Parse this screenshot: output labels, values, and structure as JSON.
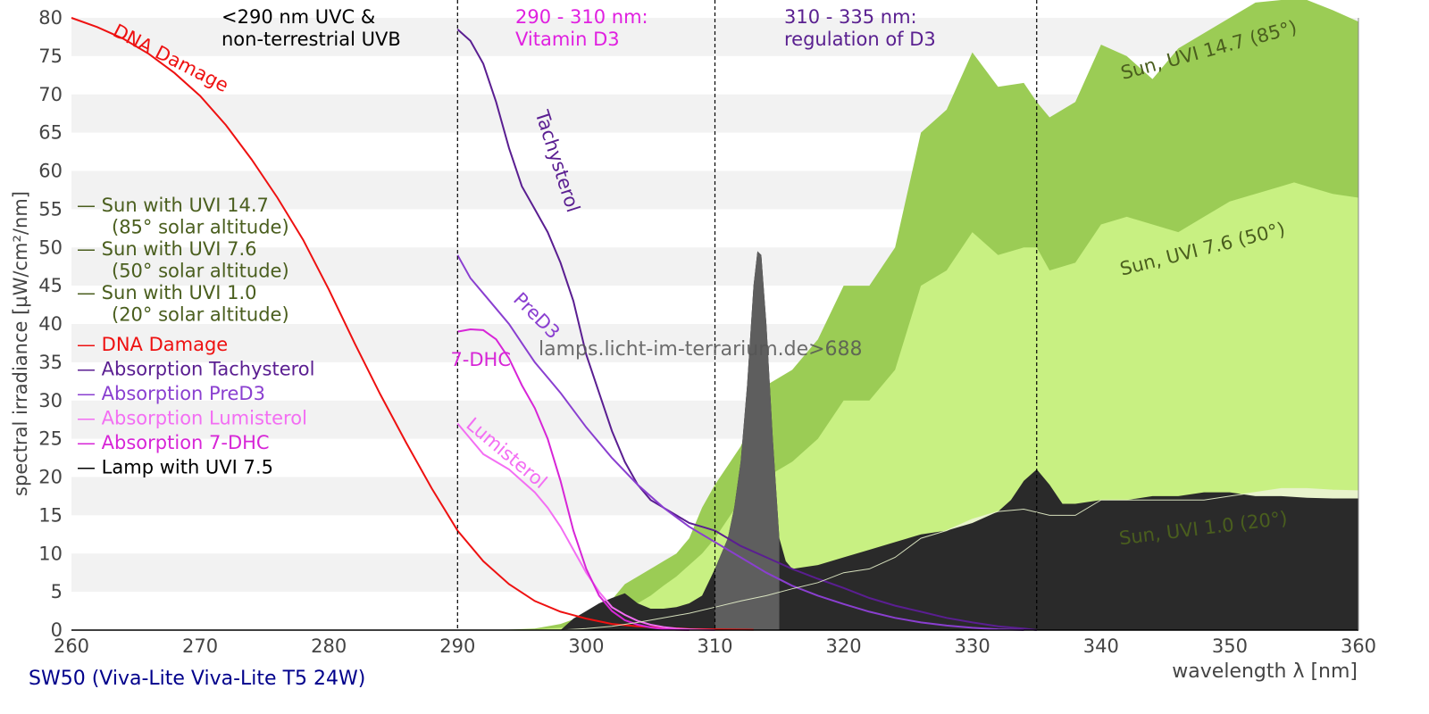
{
  "caption": "SW50 (Viva-Lite Viva-Lite T5 24W)",
  "watermark": "lamps.licht-im-terrarium.de>688",
  "chart_data": {
    "type": "area",
    "xlabel": "wavelength λ [nm]",
    "ylabel": "spectral irradiance [µW/cm²/nm]",
    "xlim": [
      260,
      360
    ],
    "ylim": [
      0,
      80
    ],
    "xticks": [
      "260",
      "270",
      "280",
      "290",
      "300",
      "310",
      "320",
      "330",
      "340",
      "350",
      "360"
    ],
    "yticks": [
      "0",
      "5",
      "10",
      "15",
      "20",
      "25",
      "30",
      "35",
      "40",
      "45",
      "50",
      "55",
      "60",
      "65",
      "70",
      "75",
      "80"
    ],
    "grid": "horizontal bands",
    "region_lines": [
      290,
      310,
      335
    ],
    "regions": [
      {
        "line1": "<290 nm UVC &",
        "line2": "non-terrestrial UVB",
        "color": "#000000"
      },
      {
        "line1": "290 - 310 nm:",
        "line2": "Vitamin D3",
        "color": "#e020e0"
      },
      {
        "line1": "310 - 335 nm:",
        "line2": "regulation of D3",
        "color": "#5a2090"
      }
    ],
    "legend": {
      "placement": "left",
      "items": [
        {
          "label": "— Sun with UVI 14.7",
          "sub": "(85° solar altitude)",
          "color": "#4a5e1e"
        },
        {
          "label": "— Sun with UVI 7.6",
          "sub": "(50° solar altitude)",
          "color": "#4a5e1e"
        },
        {
          "label": "— Sun with UVI 1.0",
          "sub": "(20° solar altitude)",
          "color": "#4a5e1e"
        },
        {
          "label": "— DNA Damage",
          "color": "#ee1111"
        },
        {
          "label": "— Absorption Tachysterol",
          "color": "#5a1e91"
        },
        {
          "label": "— Absorption PreD3",
          "color": "#8a3fd0"
        },
        {
          "label": "— Absorption Lumisterol",
          "color": "#f36ef3"
        },
        {
          "label": "— Absorption 7-DHC",
          "color": "#d725d7"
        },
        {
          "label": "— Lamp with UVI 7.5",
          "color": "#000000"
        }
      ]
    },
    "series": [
      {
        "name": "Sun, UVI 14.7 (85°)",
        "type": "area",
        "color": "#9bcc55",
        "x": [
          293,
          296,
          298,
          300,
          302,
          303,
          304,
          305,
          306,
          307,
          308,
          309,
          310,
          312,
          314,
          316,
          318,
          320,
          322,
          324,
          326,
          328,
          330,
          332,
          334,
          335,
          336,
          338,
          340,
          342,
          344,
          346,
          348,
          350,
          352,
          354,
          355,
          356,
          358,
          360
        ],
        "y": [
          0,
          0.2,
          0.8,
          2,
          4,
          6,
          7,
          8,
          9,
          10,
          12,
          16,
          19,
          24,
          32,
          34,
          38,
          45,
          45,
          50,
          65,
          68,
          75.5,
          71,
          71.5,
          69,
          67,
          69,
          76.5,
          75,
          72,
          76,
          78,
          80,
          82,
          83.5,
          84,
          83,
          81,
          79.5
        ]
      },
      {
        "name": "Sun, UVI 7.6 (50°)",
        "type": "area",
        "color": "#c8f082",
        "x": [
          294,
          296,
          298,
          300,
          302,
          304,
          305,
          306,
          307,
          308,
          309,
          310,
          312,
          314,
          316,
          318,
          320,
          322,
          324,
          326,
          328,
          330,
          332,
          334,
          335,
          336,
          338,
          340,
          342,
          344,
          346,
          348,
          350,
          352,
          354,
          355,
          356,
          358,
          360
        ],
        "y": [
          0,
          0.1,
          0.3,
          0.8,
          1.5,
          3.5,
          4.5,
          5.8,
          7,
          8.5,
          10,
          12,
          17,
          20,
          22,
          25,
          30,
          30,
          34,
          45,
          47,
          52,
          49,
          50,
          50,
          47,
          48,
          53,
          54,
          53,
          52,
          54,
          56,
          57,
          58,
          58.5,
          58,
          57,
          56.5
        ]
      },
      {
        "name": "Sun, UVI 1.0 (20°)",
        "type": "area",
        "color": "#e8f3cc",
        "x": [
          298,
          300,
          302,
          304,
          306,
          308,
          310,
          312,
          314,
          316,
          318,
          320,
          322,
          324,
          326,
          328,
          330,
          332,
          334,
          336,
          338,
          340,
          342,
          344,
          346,
          348,
          350,
          352,
          354,
          356,
          358,
          360
        ],
        "y": [
          0,
          0.2,
          0.5,
          1,
          1.6,
          2.2,
          3,
          3.8,
          4.5,
          5.4,
          6.2,
          7.5,
          8,
          9.5,
          12,
          13,
          14.5,
          15.5,
          15.8,
          15,
          15,
          17,
          17,
          17,
          17,
          17,
          17.5,
          18,
          18.5,
          18.5,
          18.3,
          18.2
        ]
      },
      {
        "name": "Lamp with UVI 7.5",
        "type": "area",
        "color": "#2a2a2a",
        "x": [
          298,
          299,
          300,
          301,
          302,
          303,
          304,
          305,
          306,
          307,
          308,
          309,
          310,
          310.5,
          311,
          311.5,
          312,
          312.5,
          313,
          313.3,
          313.6,
          314,
          314.5,
          315,
          315.5,
          316,
          318,
          320,
          322,
          324,
          326,
          328,
          330,
          332,
          333,
          334,
          335,
          336,
          337,
          338,
          340,
          342,
          344,
          346,
          348,
          350,
          352,
          354,
          356,
          358,
          360
        ],
        "y": [
          0,
          1.5,
          2.5,
          3.5,
          4.2,
          4.8,
          3.5,
          2.8,
          2.8,
          3,
          3.5,
          4.5,
          8,
          10,
          12,
          16,
          22,
          32,
          45,
          49.5,
          49,
          40,
          25,
          12,
          9,
          8,
          8.5,
          9.5,
          10.5,
          11.5,
          12.5,
          13,
          14,
          15.5,
          17,
          19.5,
          21,
          19,
          16.5,
          16.5,
          17,
          17,
          17.5,
          17.5,
          18,
          18,
          17.5,
          17.5,
          17.3,
          17.2,
          17.2
        ]
      },
      {
        "name": "DNA Damage",
        "type": "line",
        "color": "#ee1111",
        "x": [
          260,
          262,
          264,
          266,
          268,
          270,
          272,
          274,
          276,
          278,
          280,
          282,
          284,
          286,
          288,
          290,
          292,
          294,
          296,
          298,
          300,
          302,
          304,
          306,
          308,
          310,
          313
        ],
        "y": [
          80,
          78.8,
          77.3,
          75.3,
          72.8,
          69.8,
          66,
          61.5,
          56.5,
          51,
          44.5,
          37.5,
          30.8,
          24.5,
          18.5,
          13,
          9,
          6,
          3.8,
          2.4,
          1.5,
          0.8,
          0.5,
          0.3,
          0.15,
          0.1,
          0.05
        ]
      },
      {
        "name": "Absorption Tachysterol",
        "type": "line",
        "color": "#5a1e91",
        "x": [
          290,
          291,
          292,
          293,
          294,
          295,
          296,
          297,
          298,
          299,
          300,
          301,
          302,
          303,
          304,
          305,
          306,
          307,
          308,
          309,
          310,
          312,
          314,
          316,
          318,
          320,
          322,
          324,
          326,
          328,
          330,
          332,
          334,
          335
        ],
        "y": [
          78.5,
          77,
          74,
          69,
          63,
          58,
          55,
          52,
          48,
          43,
          36,
          31,
          26,
          22,
          19,
          17,
          16,
          15,
          14,
          13.5,
          13,
          11,
          9.5,
          8,
          6.7,
          5.5,
          4.2,
          3.2,
          2.4,
          1.6,
          1,
          0.5,
          0.2,
          0
        ]
      },
      {
        "name": "Absorption PreD3",
        "type": "line",
        "color": "#8a3fd0",
        "x": [
          290,
          291,
          292,
          293,
          294,
          295,
          296,
          297,
          298,
          300,
          302,
          304,
          306,
          308,
          310,
          312,
          314,
          316,
          318,
          320,
          322,
          324,
          326,
          328,
          330,
          332,
          334
        ],
        "y": [
          49,
          46,
          44,
          42,
          40,
          37.5,
          35,
          33,
          31,
          26.5,
          22.5,
          19,
          16,
          13.5,
          11.5,
          9.5,
          7.5,
          5.8,
          4.5,
          3.4,
          2.4,
          1.6,
          1,
          0.6,
          0.3,
          0.1,
          0
        ]
      },
      {
        "name": "Absorption Lumisterol",
        "type": "line",
        "color": "#f36ef3",
        "x": [
          290,
          291,
          292,
          293,
          294,
          295,
          296,
          297,
          298,
          299,
          300,
          301,
          302,
          303,
          304,
          305,
          306,
          307,
          308,
          309,
          310
        ],
        "y": [
          27,
          25,
          23,
          22,
          21,
          19.5,
          18,
          16,
          13.5,
          10.5,
          7.5,
          5,
          3,
          2,
          1.2,
          0.7,
          0.4,
          0.2,
          0.1,
          0.05,
          0
        ]
      },
      {
        "name": "Absorption 7-DHC",
        "type": "line",
        "color": "#d725d7",
        "x": [
          290,
          291,
          292,
          293,
          294,
          295,
          296,
          297,
          298,
          299,
          300,
          301,
          302,
          303,
          304,
          305,
          306,
          307,
          308
        ],
        "y": [
          39,
          39.3,
          39.2,
          38,
          35.5,
          32,
          29,
          25,
          19.5,
          13,
          8,
          4.5,
          2.5,
          1.3,
          0.7,
          0.35,
          0.15,
          0.05,
          0
        ]
      }
    ],
    "annotations": [
      {
        "text": "DNA Damage",
        "color": "#ee1111",
        "x": 267.5,
        "y": 74,
        "angle": 27
      },
      {
        "text": "Tachysterol",
        "color": "#5a1e91",
        "x": 297.3,
        "y": 61,
        "angle": 72
      },
      {
        "text": "PreD3",
        "color": "#8a3fd0",
        "x": 295.8,
        "y": 40.5,
        "angle": 45
      },
      {
        "text": "7-DHC",
        "color": "#d725d7",
        "x": 291.8,
        "y": 34.5,
        "angle": 0
      },
      {
        "text": "Lumisterol",
        "color": "#f36ef3",
        "x": 293.5,
        "y": 22.5,
        "angle": 40
      },
      {
        "text": "Sun, UVI 14.7 (85°)",
        "color": "#4a5e1e",
        "x": 348.5,
        "y": 75,
        "angle": -15
      },
      {
        "text": "Sun, UVI 7.6 (50°)",
        "color": "#4a5e1e",
        "x": 348,
        "y": 49,
        "angle": -14
      },
      {
        "text": "Sun, UVI 1.0 (20°)",
        "color": "#4a5e1e",
        "x": 348,
        "y": 12.5,
        "angle": -7
      }
    ]
  }
}
